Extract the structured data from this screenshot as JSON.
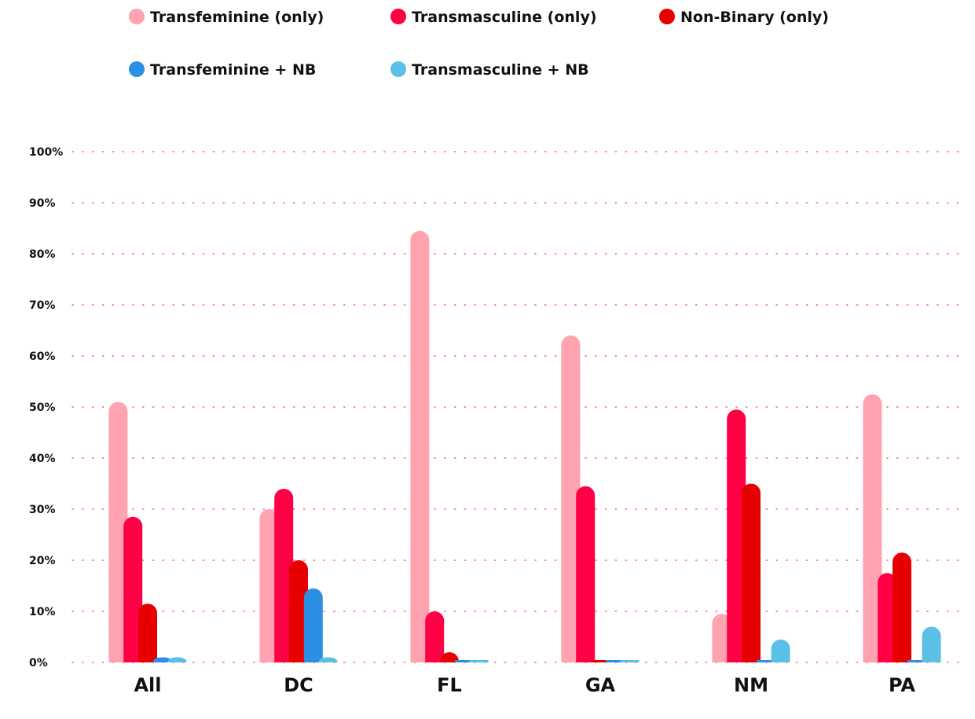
{
  "chart_data": {
    "type": "bar",
    "title": "",
    "xlabel": "",
    "ylabel": "",
    "y_unit": "%",
    "ylim": [
      0,
      100
    ],
    "y_ticks": [
      0,
      10,
      20,
      30,
      40,
      50,
      60,
      70,
      80,
      90,
      100
    ],
    "y_tick_labels": [
      "0%",
      "10%",
      "20%",
      "30%",
      "40%",
      "50%",
      "60%",
      "70%",
      "80%",
      "90%",
      "100%"
    ],
    "grid": true,
    "grid_style": "dotted",
    "legend_position": "top",
    "categories": [
      "All",
      "DC",
      "FL",
      "GA",
      "NM",
      "PA"
    ],
    "series": [
      {
        "name": "Transfeminine (only)",
        "color": "#ffa3b0",
        "values": [
          51,
          30,
          84.5,
          64,
          9.5,
          52.5
        ]
      },
      {
        "name": "Transmasculine (only)",
        "color": "#ff0044",
        "values": [
          28.5,
          34,
          10,
          34.5,
          49.5,
          17.5
        ]
      },
      {
        "name": "Non-Binary (only)",
        "color": "#e60000",
        "values": [
          11.5,
          20,
          2,
          0,
          35,
          21.5
        ]
      },
      {
        "name": "Transfeminine + NB",
        "color": "#2b8fe3",
        "values": [
          1,
          14.5,
          0,
          0,
          0,
          0
        ]
      },
      {
        "name": "Transmasculine + NB",
        "color": "#5bc0e6",
        "values": [
          1,
          1,
          0,
          0,
          4.5,
          7
        ]
      }
    ]
  }
}
